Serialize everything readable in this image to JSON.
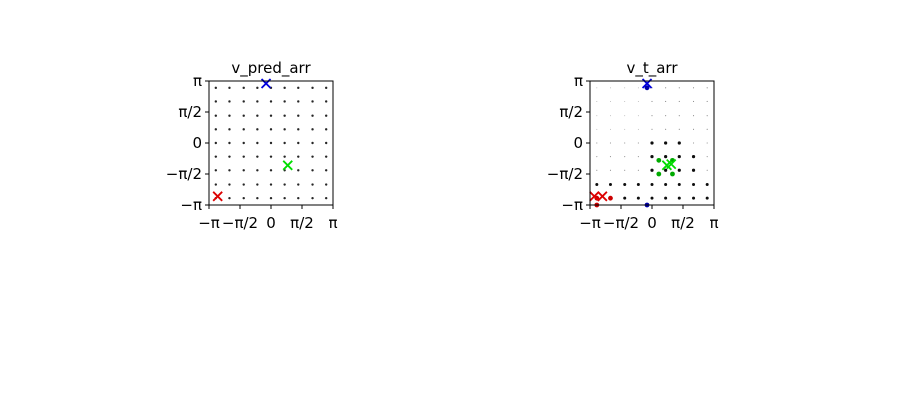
{
  "figure": {
    "background": "#ffffff"
  },
  "chart_data": [
    {
      "type": "scatter",
      "title": "v_pred_arr",
      "xlim": [
        "-π",
        "π"
      ],
      "ylim": [
        "-π",
        "π"
      ],
      "xtick_labels": [
        "−π",
        "−π/2",
        "0",
        "π/2",
        "π"
      ],
      "ytick_labels": [
        "−π",
        "−π/2",
        "0",
        "π/2",
        "π"
      ],
      "grid": false,
      "grid_dots": {
        "description": "9x9 lattice of small black points",
        "values_x_over_pi": [
          -0.89,
          -0.67,
          -0.44,
          -0.22,
          0.0,
          0.22,
          0.44,
          0.67,
          0.89
        ],
        "values_y_over_pi": [
          -0.89,
          -0.67,
          -0.44,
          -0.22,
          0.0,
          0.22,
          0.44,
          0.67,
          0.89
        ],
        "color": "#000000"
      },
      "markers": [
        {
          "name": "red",
          "x_over_pi": -0.86,
          "y_over_pi": -0.86,
          "color": "#dd0000",
          "marker": "x"
        },
        {
          "name": "green",
          "x_over_pi": 0.27,
          "y_over_pi": -0.36,
          "color": "#00dd00",
          "marker": "x"
        },
        {
          "name": "blue",
          "x_over_pi": -0.08,
          "y_over_pi": 0.96,
          "color": "#0000dd",
          "marker": "x"
        }
      ]
    },
    {
      "type": "scatter",
      "title": "v_t_arr",
      "xlim": [
        "-π",
        "π"
      ],
      "ylim": [
        "-π",
        "π"
      ],
      "xtick_labels": [
        "−π",
        "−π/2",
        "0",
        "π/2",
        "π"
      ],
      "ytick_labels": [
        "−π",
        "−π/2",
        "0",
        "π/2",
        "π"
      ],
      "grid": false,
      "grid_dots": {
        "description": "9x9 lattice of points whose size varies",
        "values_x_over_pi": [
          -0.89,
          -0.67,
          -0.44,
          -0.22,
          0.0,
          0.22,
          0.44,
          0.67,
          0.89
        ],
        "values_y_over_pi": [
          -0.89,
          -0.67,
          -0.44,
          -0.22,
          0.0,
          0.22,
          0.44,
          0.67,
          0.89
        ],
        "color": "#000000"
      },
      "markers": [
        {
          "name": "red",
          "x_over_pi": -0.93,
          "y_over_pi": -0.86,
          "color": "#dd0000",
          "marker": "x"
        },
        {
          "name": "red",
          "x_over_pi": -0.8,
          "y_over_pi": -0.86,
          "color": "#dd0000",
          "marker": "x"
        },
        {
          "name": "green",
          "x_over_pi": 0.24,
          "y_over_pi": -0.36,
          "color": "#00dd00",
          "marker": "x"
        },
        {
          "name": "green",
          "x_over_pi": 0.31,
          "y_over_pi": -0.34,
          "color": "#00dd00",
          "marker": "x"
        },
        {
          "name": "blue",
          "x_over_pi": -0.08,
          "y_over_pi": 0.96,
          "color": "#0000dd",
          "marker": "x"
        }
      ],
      "colored_dots": [
        {
          "x_over_pi": -0.89,
          "y_over_pi": -0.89,
          "color": "#cc0000"
        },
        {
          "x_over_pi": -0.67,
          "y_over_pi": -0.89,
          "color": "#cc0000"
        },
        {
          "x_over_pi": -0.89,
          "y_over_pi": -1.0,
          "color": "#cc0000"
        },
        {
          "x_over_pi": 0.11,
          "y_over_pi": -0.28,
          "color": "#00aa00"
        },
        {
          "x_over_pi": 0.33,
          "y_over_pi": -0.28,
          "color": "#00aa00"
        },
        {
          "x_over_pi": 0.33,
          "y_over_pi": -0.5,
          "color": "#00aa00"
        },
        {
          "x_over_pi": 0.11,
          "y_over_pi": -0.5,
          "color": "#00aa00"
        },
        {
          "x_over_pi": -0.08,
          "y_over_pi": 0.89,
          "color": "#0000aa"
        },
        {
          "x_over_pi": -0.08,
          "y_over_pi": -1.0,
          "color": "#0000aa"
        }
      ]
    }
  ]
}
